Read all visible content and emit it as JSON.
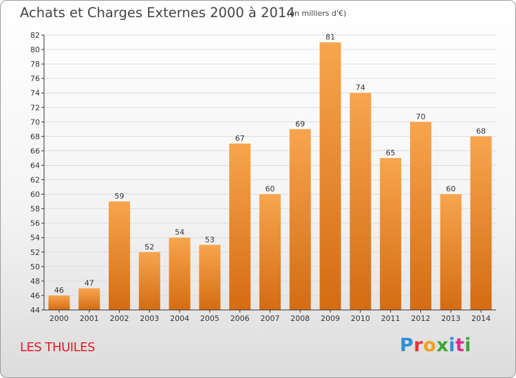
{
  "header": {
    "title": "Achats et Charges Externes 2000 à 2014",
    "subtitle": "(en milliers d'€)"
  },
  "footer": {
    "commune": "LES THUILES",
    "brand": "Proxiti"
  },
  "colors": {
    "bar_top": "#f7a54e",
    "bar_bottom": "#d46c12",
    "grid": "#dddddd",
    "axis": "#333333",
    "commune": "#d8212b"
  },
  "chart_data": {
    "type": "bar",
    "title": "Achats et Charges Externes 2000 à 2014",
    "subtitle": "(en milliers d'€)",
    "xlabel": "",
    "ylabel": "",
    "categories": [
      "2000",
      "2001",
      "2002",
      "2003",
      "2004",
      "2005",
      "2006",
      "2007",
      "2008",
      "2009",
      "2010",
      "2011",
      "2012",
      "2013",
      "2014"
    ],
    "values": [
      46,
      47,
      59,
      52,
      54,
      53,
      67,
      60,
      69,
      81,
      74,
      65,
      70,
      60,
      68
    ],
    "ylim": [
      44,
      82
    ],
    "yticks": [
      44,
      46,
      48,
      50,
      52,
      54,
      56,
      58,
      60,
      62,
      64,
      66,
      68,
      70,
      72,
      74,
      76,
      78,
      80,
      82
    ],
    "grid": true,
    "legend": "none"
  }
}
